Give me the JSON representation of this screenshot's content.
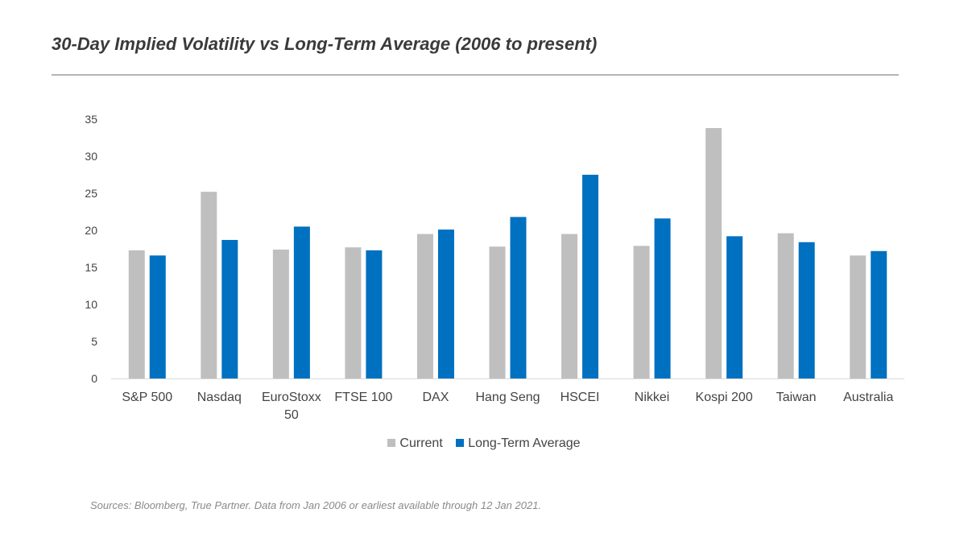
{
  "title": "30-Day Implied Volatility vs Long-Term Average (2006 to present)",
  "source": "Sources: Bloomberg, True Partner. Data from Jan 2006 or earliest available through 12 Jan 2021.",
  "colors": {
    "current": "#bfbfbf",
    "long_term": "#0070c0"
  },
  "chart_data": {
    "type": "bar",
    "categories": [
      "S&P 500",
      "Nasdaq",
      "EuroStoxx 50",
      "FTSE 100",
      "DAX",
      "Hang Seng",
      "HSCEI",
      "Nikkei",
      "Kospi 200",
      "Taiwan",
      "Australia"
    ],
    "category_lines": [
      [
        "S&P 500"
      ],
      [
        "Nasdaq"
      ],
      [
        "EuroStoxx",
        "50"
      ],
      [
        "FTSE 100"
      ],
      [
        "DAX"
      ],
      [
        "Hang Seng"
      ],
      [
        "HSCEI"
      ],
      [
        "Nikkei"
      ],
      [
        "Kospi 200"
      ],
      [
        "Taiwan"
      ],
      [
        "Australia"
      ]
    ],
    "series": [
      {
        "name": "Current",
        "values": [
          17.3,
          25.2,
          17.4,
          17.7,
          19.5,
          17.8,
          19.5,
          17.9,
          33.8,
          19.6,
          16.6
        ]
      },
      {
        "name": "Long-Term Average",
        "values": [
          16.6,
          18.7,
          20.5,
          17.3,
          20.1,
          21.8,
          27.5,
          21.6,
          19.2,
          18.4,
          17.2
        ]
      }
    ],
    "yticks": [
      0,
      5,
      10,
      15,
      20,
      25,
      30,
      35
    ],
    "ylim": [
      0,
      35
    ],
    "grid": false,
    "legend_position": "bottom"
  }
}
